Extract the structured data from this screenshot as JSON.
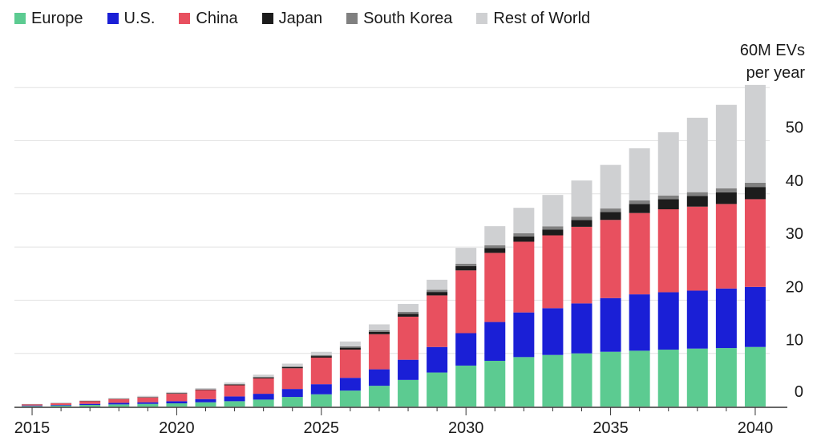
{
  "chart_data": {
    "type": "bar",
    "stacked": true,
    "ylabel_line1": "60M EVs",
    "ylabel_line2": "per year",
    "x": [
      2015,
      2016,
      2017,
      2018,
      2019,
      2020,
      2021,
      2022,
      2023,
      2024,
      2025,
      2026,
      2027,
      2028,
      2029,
      2030,
      2031,
      2032,
      2033,
      2034,
      2035,
      2036,
      2037,
      2038,
      2039,
      2040
    ],
    "xticks": [
      "2015",
      "2020",
      "2025",
      "2030",
      "2035",
      "2040"
    ],
    "yticks": [
      "0",
      "10",
      "20",
      "30",
      "40",
      "50"
    ],
    "ylim": [
      0,
      60
    ],
    "grid": true,
    "legend_position": "top-left",
    "series": [
      {
        "name": "Europe",
        "color": "#5ccb91",
        "values": [
          0.1,
          0.2,
          0.3,
          0.4,
          0.5,
          0.6,
          0.8,
          1.0,
          1.3,
          1.8,
          2.3,
          3.0,
          3.9,
          5.0,
          6.4,
          7.7,
          8.6,
          9.3,
          9.7,
          10.0,
          10.3,
          10.5,
          10.7,
          10.9,
          11.0,
          11.2
        ]
      },
      {
        "name": "U.S.",
        "color": "#1a1fd6",
        "values": [
          0.1,
          0.1,
          0.2,
          0.3,
          0.3,
          0.4,
          0.6,
          0.9,
          1.1,
          1.5,
          1.9,
          2.4,
          3.1,
          3.8,
          4.8,
          6.1,
          7.3,
          8.4,
          8.8,
          9.4,
          10.1,
          10.6,
          10.8,
          10.9,
          11.2,
          11.3
        ]
      },
      {
        "name": "China",
        "color": "#e8505f",
        "values": [
          0.2,
          0.3,
          0.5,
          0.7,
          0.9,
          1.4,
          1.7,
          2.1,
          2.9,
          3.9,
          5.0,
          5.3,
          6.6,
          8.1,
          9.7,
          11.8,
          13.0,
          13.3,
          13.7,
          14.4,
          14.7,
          15.3,
          15.6,
          15.8,
          15.9,
          16.5
        ]
      },
      {
        "name": "Japan",
        "color": "#1c1c1c",
        "values": [
          0.03,
          0.04,
          0.05,
          0.06,
          0.07,
          0.09,
          0.1,
          0.13,
          0.17,
          0.21,
          0.29,
          0.37,
          0.46,
          0.55,
          0.65,
          0.8,
          0.9,
          1.0,
          1.1,
          1.3,
          1.5,
          1.7,
          1.9,
          2.0,
          2.2,
          2.3
        ]
      },
      {
        "name": "South Korea",
        "color": "#808080",
        "values": [
          0.01,
          0.01,
          0.02,
          0.03,
          0.03,
          0.05,
          0.07,
          0.09,
          0.12,
          0.16,
          0.2,
          0.26,
          0.3,
          0.35,
          0.4,
          0.45,
          0.52,
          0.58,
          0.6,
          0.62,
          0.65,
          0.68,
          0.7,
          0.72,
          0.75,
          0.8
        ]
      },
      {
        "name": "Rest of World",
        "color": "#cfd0d2",
        "values": [
          0.05,
          0.06,
          0.1,
          0.1,
          0.2,
          0.2,
          0.2,
          0.3,
          0.4,
          0.5,
          0.6,
          0.9,
          1.1,
          1.5,
          1.9,
          3.0,
          3.6,
          4.8,
          5.9,
          6.8,
          8.2,
          9.8,
          11.9,
          14.0,
          15.7,
          18.4
        ]
      }
    ]
  }
}
